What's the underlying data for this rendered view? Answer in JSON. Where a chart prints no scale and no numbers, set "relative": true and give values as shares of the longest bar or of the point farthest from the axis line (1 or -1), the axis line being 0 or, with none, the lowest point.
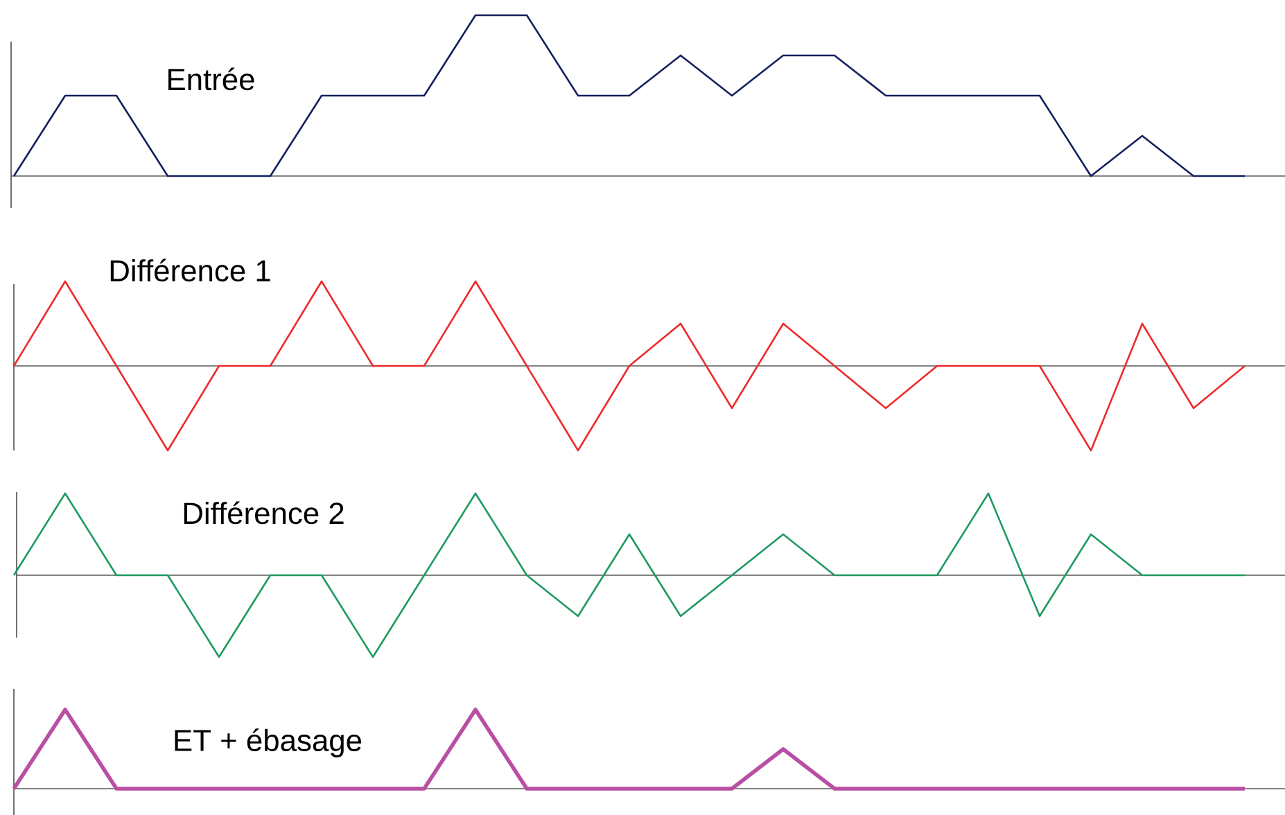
{
  "chart_data": [
    {
      "type": "line",
      "title": "Entrée",
      "relative": true,
      "categories": [
        null,
        null,
        null,
        null,
        null,
        null,
        null,
        null,
        null,
        null,
        null,
        null,
        null,
        null,
        null,
        null,
        null,
        null,
        null,
        null,
        null,
        null,
        null,
        null,
        null
      ],
      "series": [
        {
          "color": "#14205e",
          "values": [
            0,
            0.5,
            0.5,
            0,
            0,
            0,
            0.5,
            0.5,
            0.5,
            1,
            1,
            0.5,
            0.5,
            0.75,
            0.5,
            0.75,
            0.75,
            0.5,
            0.5,
            0.5,
            0.5,
            0,
            0.25,
            0,
            0
          ]
        }
      ]
    },
    {
      "type": "line",
      "title": "Différence 1",
      "relative": true,
      "categories": [
        null,
        null,
        null,
        null,
        null,
        null,
        null,
        null,
        null,
        null,
        null,
        null,
        null,
        null,
        null,
        null,
        null,
        null,
        null,
        null,
        null,
        null,
        null,
        null,
        null
      ],
      "series": [
        {
          "color": "#ee2a2a",
          "values": [
            0,
            1,
            0,
            -1,
            0,
            0,
            1,
            0,
            0,
            1,
            0,
            -1,
            0,
            0.5,
            -0.5,
            0.5,
            0,
            -0.5,
            0,
            0,
            0,
            -1,
            0.5,
            -0.5,
            0
          ]
        }
      ]
    },
    {
      "type": "line",
      "title": "Différence 2",
      "relative": true,
      "categories": [
        null,
        null,
        null,
        null,
        null,
        null,
        null,
        null,
        null,
        null,
        null,
        null,
        null,
        null,
        null,
        null,
        null,
        null,
        null,
        null,
        null,
        null,
        null,
        null,
        null
      ],
      "series": [
        {
          "color": "#1e9a60",
          "values": [
            0,
            1,
            0,
            0,
            -1,
            0,
            0,
            -1,
            0,
            1,
            0,
            -0.5,
            0.5,
            -0.5,
            0,
            0.5,
            0,
            0,
            0,
            1,
            -0.5,
            0.5,
            0,
            0,
            0
          ]
        }
      ]
    },
    {
      "type": "line",
      "title": "ET + ébasage",
      "relative": true,
      "categories": [
        null,
        null,
        null,
        null,
        null,
        null,
        null,
        null,
        null,
        null,
        null,
        null,
        null,
        null,
        null,
        null,
        null,
        null,
        null,
        null,
        null,
        null,
        null,
        null,
        null
      ],
      "series": [
        {
          "color": "#b84fa4",
          "values": [
            0,
            1,
            0,
            0,
            0,
            0,
            0,
            0,
            0,
            1,
            0,
            0,
            0,
            0,
            0,
            0.5,
            0,
            0,
            0,
            0,
            0,
            0,
            0,
            0,
            0
          ]
        }
      ]
    }
  ]
}
